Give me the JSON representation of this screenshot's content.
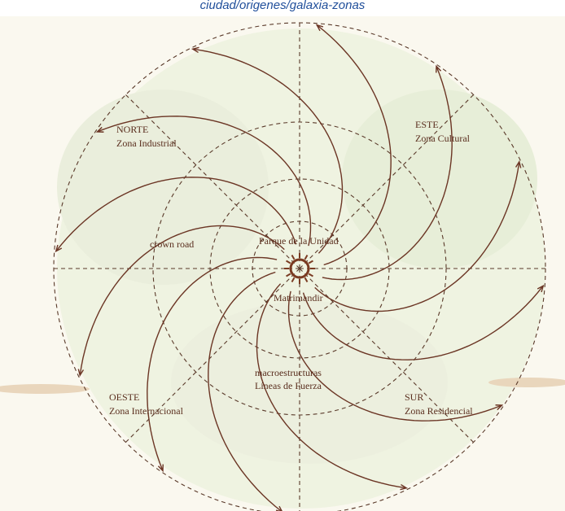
{
  "caption": "ciudad/origenes/galaxia-zonas",
  "zones": [
    {
      "name": "NORTE",
      "subtitle": "Zona Industrial"
    },
    {
      "name": "ESTE",
      "subtitle": "Zona Cultural"
    },
    {
      "name": "OESTE",
      "subtitle": "Zona Internacional"
    },
    {
      "name": "SUR",
      "subtitle": "Zona Residencial"
    }
  ],
  "annotations": {
    "crown": "crown road",
    "park": "Parque de la Unidad",
    "center": "Matrimandir",
    "macro": [
      "macroestructuras",
      "Líneas de Fuerza"
    ]
  }
}
